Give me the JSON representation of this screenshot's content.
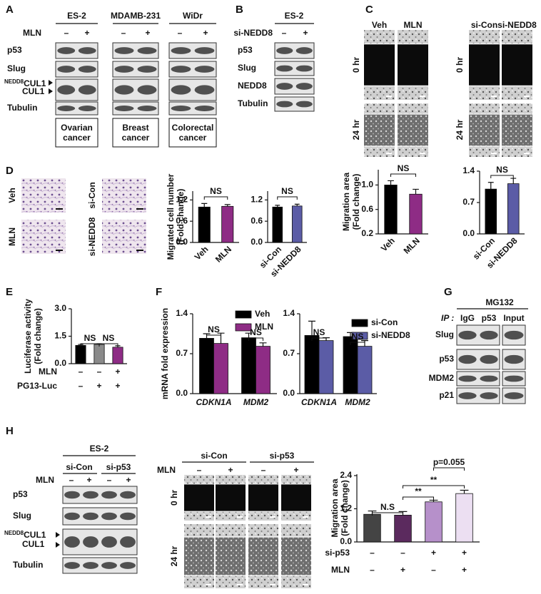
{
  "panels": {
    "A": {
      "letter": "A",
      "cell_lines": [
        "ES-2",
        "MDAMB-231",
        "WiDr"
      ],
      "treatment": "MLN",
      "signs": [
        "–",
        "+"
      ],
      "proteins": [
        "p53",
        "Slug"
      ],
      "neddylated": {
        "prefix": "NEDD8",
        "name": "CUL1"
      },
      "cul1": "CUL1",
      "loading": "Tubulin",
      "cancers": [
        [
          "Ovarian",
          "cancer"
        ],
        [
          "Breast",
          "cancer"
        ],
        [
          "Colorectal",
          "cancer"
        ]
      ]
    },
    "B": {
      "letter": "B",
      "cell_line": "ES-2",
      "treatment": "si-NEDD8",
      "signs": [
        "–",
        "+"
      ],
      "proteins": [
        "p53",
        "Slug",
        "NEDD8",
        "Tubulin"
      ]
    },
    "C": {
      "letter": "C",
      "images_left": [
        "Veh",
        "MLN"
      ],
      "images_right": [
        "si-Con",
        "si-NEDD8"
      ],
      "times": [
        "0 hr",
        "24 hr"
      ],
      "charts": [
        {
          "type": "bar",
          "ylabel": [
            "Migration area",
            "(Fold change)"
          ],
          "categories": [
            "Veh",
            "MLN"
          ],
          "values": [
            1.0,
            0.85
          ],
          "errors": [
            0.07,
            0.08
          ],
          "colors": [
            "#000000",
            "#8e2c85"
          ],
          "ylim": [
            0.2,
            1.25
          ],
          "yticks": [
            0.2,
            0.6,
            {
              "value": 1,
              "label": "1.0"
            }
          ],
          "annotations": [
            "NS"
          ]
        },
        {
          "type": "bar",
          "categories": [
            "si-Con",
            "si-NEDD8"
          ],
          "values": [
            1.0,
            1.12
          ],
          "errors": [
            0.15,
            0.12
          ],
          "colors": [
            "#000000",
            "#5b5ca6"
          ],
          "ylim": [
            0,
            1.4
          ],
          "yticks": [
            {
              "value": 0,
              "label": "0.0"
            },
            0.7,
            1.4
          ],
          "annotations": [
            "NS"
          ]
        }
      ]
    },
    "D": {
      "letter": "D",
      "images": [
        "Veh",
        "MLN",
        "si-Con",
        "si-NEDD8"
      ],
      "charts": [
        {
          "type": "bar",
          "ylabel": [
            "Migrated cell number",
            "(Fold change)"
          ],
          "categories": [
            "Veh",
            "MLN"
          ],
          "values": [
            1.0,
            1.02
          ],
          "errors": [
            0.1,
            0.05
          ],
          "colors": [
            "#000000",
            "#8e2c85"
          ],
          "ylim": [
            0,
            1.45
          ],
          "yticks": [
            {
              "value": 0,
              "label": "0.0"
            },
            0.6,
            1.2
          ],
          "annotations": [
            "NS"
          ]
        },
        {
          "type": "bar",
          "categories": [
            "si-Con",
            "si-NEDD8"
          ],
          "values": [
            1.0,
            1.03
          ],
          "errors": [
            0.05,
            0.05
          ],
          "colors": [
            "#000000",
            "#5b5ca6"
          ],
          "ylim": [
            0,
            1.45
          ],
          "yticks": [
            {
              "value": 0,
              "label": "0.0"
            },
            0.6,
            1.2
          ],
          "annotations": [
            "NS"
          ]
        }
      ]
    },
    "E": {
      "letter": "E",
      "chart": {
        "type": "bar",
        "ylabel": [
          "Luciferase activity",
          "(Fold change)"
        ],
        "values": [
          1.0,
          1.05,
          0.9
        ],
        "errors": [
          0.05,
          0.04,
          0.08
        ],
        "colors": [
          "#000000",
          "#8a8a8a",
          "#8e2c85"
        ],
        "ylim": [
          0,
          3
        ],
        "yticks": [
          {
            "value": 0,
            "label": "0.0"
          },
          1.5,
          {
            "value": 3,
            "label": "3.0"
          }
        ],
        "annotations": [
          "NS",
          "NS"
        ],
        "rows": [
          {
            "label": "MLN",
            "signs": [
              "–",
              "–",
              "+"
            ]
          },
          {
            "label": "PG13-Luc",
            "signs": [
              "–",
              "+",
              "+"
            ]
          }
        ]
      }
    },
    "F": {
      "letter": "F",
      "charts": [
        {
          "type": "grouped_bar",
          "ylabel": [
            "mRNA fold expression"
          ],
          "categories": [
            "CDKN1A",
            "MDM2"
          ],
          "ylim": [
            0,
            1.4
          ],
          "yticks": [
            {
              "value": 0,
              "label": "0.0"
            },
            0.7,
            1.4
          ],
          "annotations": [
            "NS",
            "NS"
          ],
          "series": [
            {
              "name": "Veh",
              "color": "#000000",
              "values": [
                0.97,
                0.98
              ],
              "errors": [
                0.08,
                0.08
              ]
            },
            {
              "name": "MLN",
              "color": "#8e2c85",
              "values": [
                0.88,
                0.83
              ],
              "errors": [
                0.18,
                0.06
              ]
            }
          ]
        },
        {
          "type": "grouped_bar",
          "categories": [
            "CDKN1A",
            "MDM2"
          ],
          "ylim": [
            0,
            1.4
          ],
          "yticks": [
            {
              "value": 0,
              "label": "0.0"
            },
            0.7,
            1.4
          ],
          "annotations": [
            "NS",
            "NS"
          ],
          "series": [
            {
              "name": "si-Con",
              "color": "#000000",
              "values": [
                1.02,
                1.0
              ],
              "errors": [
                0.25,
                0.07
              ]
            },
            {
              "name": "si-NEDD8",
              "color": "#5b5ca6",
              "values": [
                0.93,
                0.83
              ],
              "errors": [
                0.05,
                0.1
              ]
            }
          ]
        }
      ]
    },
    "G": {
      "letter": "G",
      "treatment": "MG132",
      "ip": "IP :",
      "lanes": [
        "IgG",
        "p53",
        "Input"
      ],
      "proteins": [
        "Slug",
        "p53",
        "MDM2",
        "p21"
      ]
    },
    "H": {
      "letter": "H",
      "cell_line": "ES-2",
      "groups": [
        "si-Con",
        "si-p53"
      ],
      "treatment": "MLN",
      "signs": [
        "–",
        "+",
        "–",
        "+"
      ],
      "proteins": [
        "p53",
        "Slug"
      ],
      "neddylated": {
        "prefix": "NEDD8",
        "name": "CUL1"
      },
      "cul1": "CUL1",
      "loading": "Tubulin",
      "migration": {
        "groups": [
          "si-Con",
          "si-p53"
        ],
        "treatment": "MLN",
        "signs": [
          "–",
          "+",
          "–",
          "+"
        ],
        "times": [
          "0 hr",
          "24 hr"
        ]
      },
      "chart": {
        "type": "bar",
        "ylabel": [
          "Migration area",
          "(Fold change)"
        ],
        "values": [
          1.0,
          0.97,
          1.45,
          1.75
        ],
        "errors": [
          0.12,
          0.13,
          0.06,
          0.12
        ],
        "colors": [
          "#444444",
          "#5b2a5e",
          "#b690ca",
          "#ecdff2"
        ],
        "ylim": [
          0,
          2.45
        ],
        "yticks": [
          {
            "value": 0,
            "label": "0.0"
          },
          1.2,
          2.4
        ],
        "annotations": [
          "N.S",
          "**",
          "**",
          "p=0.055"
        ],
        "rows": [
          {
            "label": "si-p53",
            "signs": [
              "–",
              "–",
              "+",
              "+"
            ]
          },
          {
            "label": "MLN",
            "signs": [
              "–",
              "+",
              "–",
              "+"
            ]
          }
        ]
      }
    }
  }
}
